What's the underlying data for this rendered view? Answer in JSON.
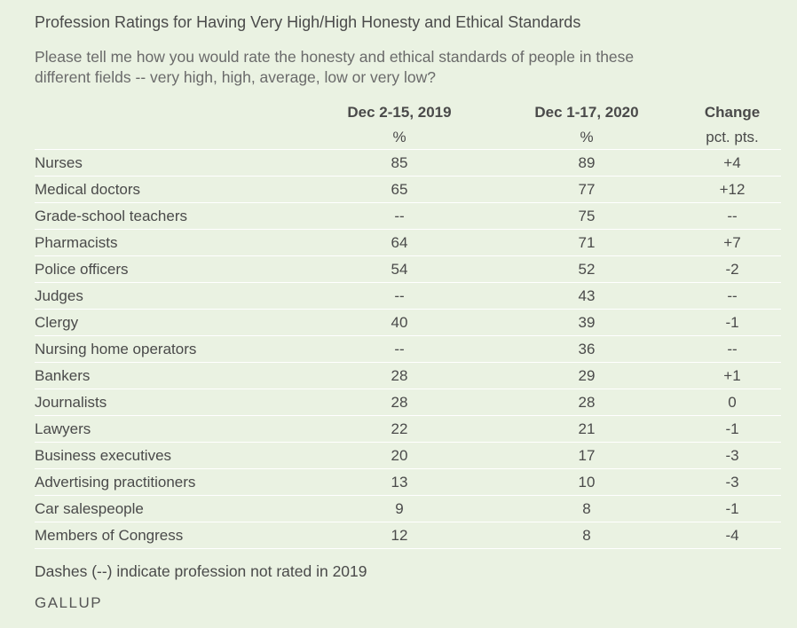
{
  "title": "Profession Ratings for Having Very High/High Honesty and Ethical Standards",
  "question": "Please tell me how you would rate the honesty and ethical standards of people in these different fields -- very high, high, average, low or very low?",
  "columns": [
    {
      "label": "Dec 2-15, 2019",
      "sub": "%"
    },
    {
      "label": "Dec 1-17, 2020",
      "sub": "%"
    },
    {
      "label": "Change",
      "sub": "pct. pts."
    }
  ],
  "rows": [
    {
      "profession": "Nurses",
      "y2019": "85",
      "y2020": "89",
      "change": "+4"
    },
    {
      "profession": "Medical doctors",
      "y2019": "65",
      "y2020": "77",
      "change": "+12"
    },
    {
      "profession": "Grade-school teachers",
      "y2019": "--",
      "y2020": "75",
      "change": "--"
    },
    {
      "profession": "Pharmacists",
      "y2019": "64",
      "y2020": "71",
      "change": "+7"
    },
    {
      "profession": "Police officers",
      "y2019": "54",
      "y2020": "52",
      "change": "-2"
    },
    {
      "profession": "Judges",
      "y2019": "--",
      "y2020": "43",
      "change": "--"
    },
    {
      "profession": "Clergy",
      "y2019": "40",
      "y2020": "39",
      "change": "-1"
    },
    {
      "profession": "Nursing home operators",
      "y2019": "--",
      "y2020": "36",
      "change": "--"
    },
    {
      "profession": "Bankers",
      "y2019": "28",
      "y2020": "29",
      "change": "+1"
    },
    {
      "profession": "Journalists",
      "y2019": "28",
      "y2020": "28",
      "change": "0"
    },
    {
      "profession": "Lawyers",
      "y2019": "22",
      "y2020": "21",
      "change": "-1"
    },
    {
      "profession": "Business executives",
      "y2019": "20",
      "y2020": "17",
      "change": "-3"
    },
    {
      "profession": "Advertising practitioners",
      "y2019": "13",
      "y2020": "10",
      "change": "-3"
    },
    {
      "profession": "Car salespeople",
      "y2019": "9",
      "y2020": "8",
      "change": "-1"
    },
    {
      "profession": "Members of Congress",
      "y2019": "12",
      "y2020": "8",
      "change": "-4"
    }
  ],
  "note": "Dashes (--) indicate profession not rated in 2019",
  "brand": "GALLUP",
  "colors": {
    "background": "#eaf2e2",
    "text": "#4a4a4a",
    "row_divider": "#ffffff"
  }
}
